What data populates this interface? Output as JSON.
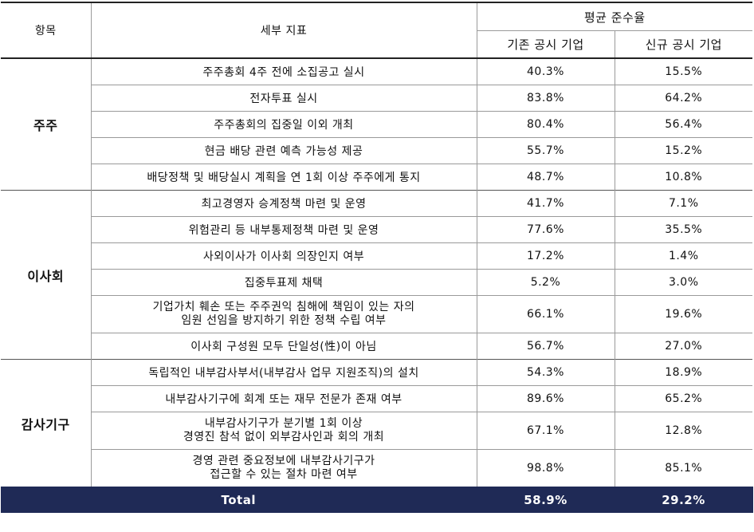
{
  "header": {
    "category": "항목",
    "detail": "세부 지표",
    "avg_rate": "평균 준수율",
    "existing": "기존 공시 기업",
    "new": "신규 공시 기업"
  },
  "groups": [
    {
      "name": "주주",
      "rows": [
        {
          "detail": [
            "주주총회 4주 전에 소집공고 실시"
          ],
          "existing": "40.3%",
          "new": "15.5%"
        },
        {
          "detail": [
            "전자투표 실시"
          ],
          "existing": "83.8%",
          "new": "64.2%"
        },
        {
          "detail": [
            "주주총회의 집중일 이외 개최"
          ],
          "existing": "80.4%",
          "new": "56.4%"
        },
        {
          "detail": [
            "현금 배당 관련 예측 가능성 제공"
          ],
          "existing": "55.7%",
          "new": "15.2%"
        },
        {
          "detail": [
            "배당정책 및 배당실시 계획을 연 1회 이상 주주에게 통지"
          ],
          "existing": "48.7%",
          "new": "10.8%"
        }
      ]
    },
    {
      "name": "이사회",
      "rows": [
        {
          "detail": [
            "최고경영자 승계정책 마련 및 운영"
          ],
          "existing": "41.7%",
          "new": "7.1%"
        },
        {
          "detail": [
            "위험관리 등 내부통제정책 마련 및 운영"
          ],
          "existing": "77.6%",
          "new": "35.5%"
        },
        {
          "detail": [
            "사외이사가 이사회 의장인지 여부"
          ],
          "existing": "17.2%",
          "new": "1.4%"
        },
        {
          "detail": [
            "집중투표제 채택"
          ],
          "existing": "5.2%",
          "new": "3.0%"
        },
        {
          "detail": [
            "기업가치 훼손 또는 주주권익 침해에 책임이 있는 자의",
            "임원 선임을 방지하기 위한 정책 수립 여부"
          ],
          "existing": "66.1%",
          "new": "19.6%"
        },
        {
          "detail": [
            "이사회 구성원 모두 단일성(性)이 아님"
          ],
          "existing": "56.7%",
          "new": "27.0%"
        }
      ]
    },
    {
      "name": "감사기구",
      "rows": [
        {
          "detail": [
            "독립적인 내부감사부서(내부감사 업무 지원조직)의 설치"
          ],
          "existing": "54.3%",
          "new": "18.9%"
        },
        {
          "detail": [
            "내부감사기구에 회계 또는 재무 전문가 존재 여부"
          ],
          "existing": "89.6%",
          "new": "65.2%"
        },
        {
          "detail": [
            "내부감사기구가 분기별 1회 이상",
            "경영진 참석 없이 외부감사인과 회의 개최"
          ],
          "existing": "67.1%",
          "new": "12.8%"
        },
        {
          "detail": [
            "경영 관련 중요정보에 내부감사기구가",
            "접근할 수 있는 절차 마련 여부"
          ],
          "existing": "98.8%",
          "new": "85.1%"
        }
      ]
    }
  ],
  "total": {
    "label": "Total",
    "existing": "58.9%",
    "new": "29.2%"
  },
  "colors": {
    "total_bg": "#1f2a56",
    "total_text": "#ffffff"
  }
}
